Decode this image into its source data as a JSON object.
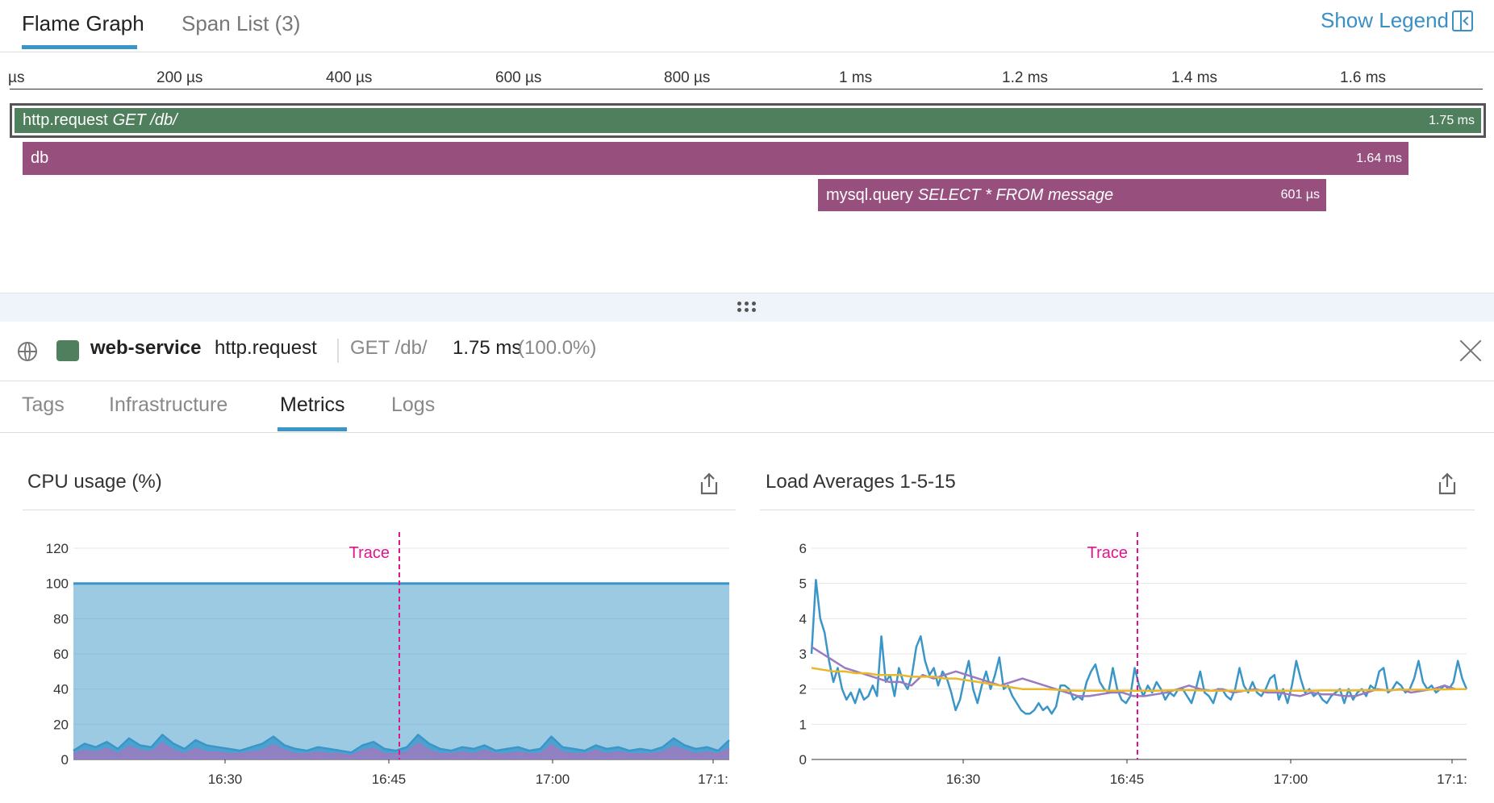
{
  "top_tabs": [
    {
      "label": "Flame Graph",
      "active": true
    },
    {
      "label": "Span List (3)",
      "active": false
    }
  ],
  "show_legend": {
    "label": "Show Legend",
    "icon": "collapse-left-icon"
  },
  "timeline_ticks": [
    "µs",
    "200 µs",
    "400 µs",
    "600 µs",
    "800 µs",
    "1 ms",
    "1.2 ms",
    "1.4 ms",
    "1.6 ms"
  ],
  "spans": [
    {
      "name": "http.request",
      "resource": "GET /db/",
      "duration": "1.75 ms",
      "color": "#4f7f5d"
    },
    {
      "name": "db",
      "resource": "",
      "duration": "1.64 ms",
      "color": "#97507e"
    },
    {
      "name": "mysql.query",
      "resource": "SELECT * FROM message",
      "duration": "601 µs",
      "color": "#97507e"
    }
  ],
  "detail": {
    "service": "web-service",
    "operation": "http.request",
    "resource": "GET /db/",
    "duration": "1.75 ms",
    "percent": "(100.0%)",
    "service_color": "#4f7f5d"
  },
  "sub_tabs": [
    {
      "label": "Tags",
      "active": false
    },
    {
      "label": "Infrastructure",
      "active": false
    },
    {
      "label": "Metrics",
      "active": true
    },
    {
      "label": "Logs",
      "active": false
    }
  ],
  "chart_data": [
    {
      "type": "area",
      "title": "CPU usage (%)",
      "ylim": [
        0,
        120
      ],
      "yticks": [
        "0",
        "20",
        "40",
        "60",
        "80",
        "100",
        "120"
      ],
      "xticks": [
        "16:30",
        "16:45",
        "17:00",
        "17:1:"
      ],
      "marker_label": "Trace",
      "series": [
        {
          "name": "",
          "color": "#3a96c8",
          "values": [
            100,
            100,
            100,
            100,
            100,
            100,
            100,
            100,
            100,
            100,
            100,
            100,
            100,
            100,
            100,
            100,
            100,
            100,
            100,
            100
          ]
        },
        {
          "name": "",
          "color": "#3a96c8",
          "values": [
            5,
            9,
            7,
            10,
            6,
            12,
            8,
            7,
            14,
            9,
            6,
            11,
            8,
            7,
            6,
            5,
            7,
            9,
            13,
            8,
            6,
            5,
            7,
            6,
            5,
            4,
            8,
            10,
            6,
            5,
            7,
            14,
            9,
            6,
            5,
            7,
            6,
            8,
            5,
            6,
            7,
            5,
            6,
            13,
            7,
            6,
            5,
            8,
            6,
            7,
            5,
            6,
            5,
            7,
            12,
            8,
            6,
            7,
            5,
            11
          ]
        },
        {
          "name": "",
          "color": "#9b7bc0",
          "values": [
            3,
            5,
            4,
            6,
            3,
            7,
            5,
            4,
            9,
            5,
            3,
            6,
            4,
            4,
            3,
            3,
            4,
            5,
            8,
            5,
            3,
            3,
            4,
            3,
            3,
            2,
            5,
            6,
            3,
            3,
            4,
            9,
            5,
            3,
            3,
            4,
            3,
            5,
            3,
            3,
            4,
            3,
            3,
            8,
            4,
            3,
            3,
            5,
            3,
            4,
            3,
            3,
            3,
            4,
            7,
            5,
            3,
            4,
            3,
            6
          ]
        }
      ],
      "grid": true
    },
    {
      "type": "line",
      "title": "Load Averages 1-5-15",
      "ylim": [
        0,
        6
      ],
      "yticks": [
        "0",
        "1",
        "2",
        "3",
        "4",
        "5",
        "6"
      ],
      "xticks": [
        "16:30",
        "16:45",
        "17:00",
        "17:1:"
      ],
      "marker_label": "Trace",
      "series": [
        {
          "name": "",
          "color": "#3a96c8",
          "values": [
            3.0,
            5.1,
            4.0,
            3.6,
            2.8,
            2.2,
            2.6,
            2.0,
            1.7,
            1.9,
            1.6,
            2.0,
            1.7,
            1.8,
            2.1,
            1.8,
            3.5,
            2.2,
            2.4,
            1.8,
            2.6,
            2.2,
            2.0,
            2.4,
            3.2,
            3.5,
            2.8,
            2.4,
            2.6,
            2.1,
            2.5,
            2.3,
            1.9,
            1.4,
            1.7,
            2.3,
            2.8,
            2.0,
            1.6,
            2.1,
            2.5,
            2.0,
            2.4,
            2.9,
            2.0,
            2.1,
            1.8,
            1.6,
            1.4,
            1.3,
            1.3,
            1.4,
            1.6,
            1.4,
            1.5,
            1.3,
            1.5,
            2.1,
            2.1,
            2.0,
            1.7,
            1.8,
            1.7,
            2.2,
            2.5,
            2.7,
            2.2,
            2.0,
            1.9,
            2.6,
            2.0,
            1.7,
            1.6,
            1.8,
            2.6,
            2.1,
            1.8,
            2.1,
            1.9,
            2.2,
            2.0,
            1.7,
            1.9,
            1.8,
            2.0,
            2.0,
            1.8,
            1.6,
            2.0,
            2.5,
            1.9,
            1.8,
            1.6,
            2.0,
            2.0,
            1.8,
            1.7,
            2.0,
            2.6,
            2.1,
            1.9,
            2.2,
            1.9,
            1.8,
            2.0,
            2.3,
            2.4,
            1.7,
            2.0,
            1.6,
            2.1,
            2.8,
            2.3,
            1.9,
            2.0,
            1.8,
            1.9,
            1.7,
            1.6,
            1.8,
            1.9,
            2.0,
            1.6,
            2.0,
            1.7,
            1.9,
            2.0,
            1.8,
            2.1,
            2.0,
            2.5,
            2.6,
            1.9,
            2.0,
            2.2,
            2.1,
            1.9,
            2.0,
            2.3,
            2.8,
            2.2,
            2.0,
            2.1,
            1.9,
            2.0,
            2.1,
            2.0,
            2.2,
            2.8,
            2.3,
            2.0
          ]
        },
        {
          "name": "",
          "color": "#9b7bc0",
          "values": [
            3.2,
            3.0,
            2.8,
            2.6,
            2.5,
            2.4,
            2.3,
            2.2,
            2.2,
            2.1,
            2.4,
            2.3,
            2.4,
            2.5,
            2.4,
            2.3,
            2.2,
            2.1,
            2.2,
            2.3,
            2.2,
            2.1,
            2.0,
            1.9,
            1.8,
            1.8,
            1.85,
            1.9,
            1.9,
            1.8,
            1.8,
            1.85,
            1.9,
            2.0,
            2.1,
            2.0,
            1.95,
            2.0,
            1.9,
            1.95,
            2.0,
            1.9,
            1.9,
            1.85,
            1.8,
            1.9,
            1.85,
            1.85,
            1.8,
            1.8,
            1.9,
            2.0,
            1.95,
            2.0,
            1.9,
            1.95,
            2.0,
            2.1,
            2.0,
            2.0
          ]
        },
        {
          "name": "",
          "color": "#e8b829",
          "values": [
            2.6,
            2.55,
            2.5,
            2.5,
            2.45,
            2.45,
            2.4,
            2.4,
            2.4,
            2.35,
            2.35,
            2.35,
            2.3,
            2.3,
            2.25,
            2.2,
            2.15,
            2.1,
            2.05,
            2.0,
            2.0,
            2.0,
            1.98,
            1.96,
            1.95,
            1.95,
            1.95,
            1.95,
            1.95,
            1.95,
            1.95,
            1.95,
            1.96,
            1.97,
            1.97,
            1.96,
            1.95,
            1.95,
            1.95,
            1.95,
            1.96,
            1.96,
            1.95,
            1.95,
            1.95,
            1.95,
            1.96,
            1.96,
            1.96,
            1.96,
            1.97,
            1.97,
            1.97,
            1.98,
            1.98,
            1.98,
            1.99,
            1.99,
            2.0,
            2.0
          ]
        }
      ],
      "grid": true
    }
  ]
}
